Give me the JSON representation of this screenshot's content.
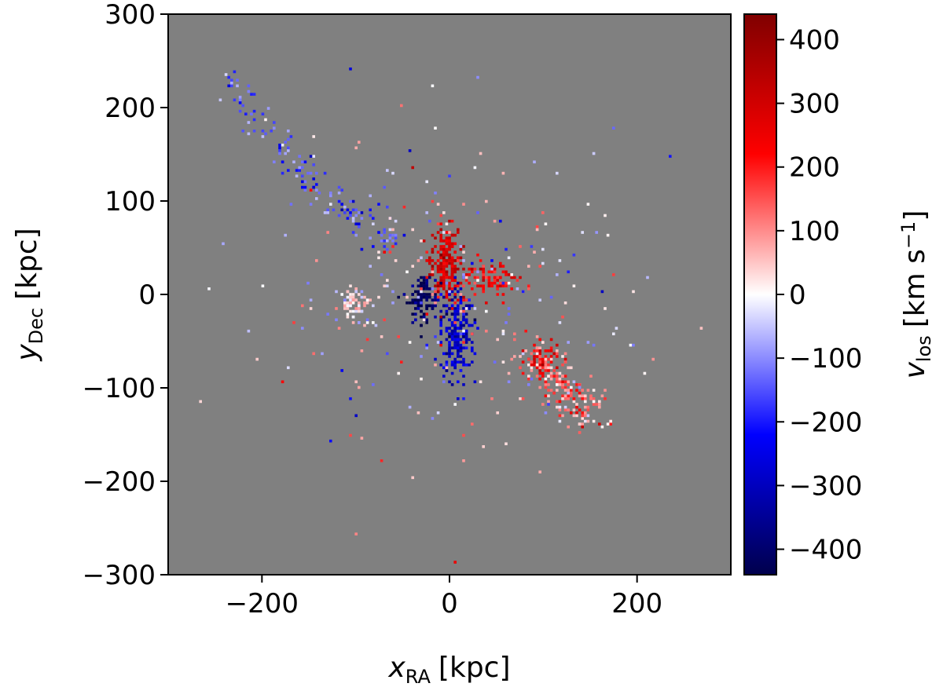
{
  "chart_data": {
    "type": "heatmap",
    "title": "",
    "background_color": "#808080",
    "colormap": "seismic",
    "x_axis": {
      "symbol": "x",
      "subscript": "RA",
      "unit": "[kpc]",
      "range": [
        -300,
        300
      ],
      "ticks": [
        -200,
        0,
        200
      ],
      "tick_labels": [
        "−200",
        "0",
        "200"
      ]
    },
    "y_axis": {
      "symbol": "y",
      "subscript": "Dec",
      "unit": "[kpc]",
      "range": [
        -300,
        300
      ],
      "ticks": [
        -300,
        -200,
        -100,
        0,
        100,
        200,
        300
      ],
      "tick_labels": [
        "−300",
        "−200",
        "−100",
        "0",
        "100",
        "200",
        "300"
      ]
    },
    "colorbar": {
      "symbol": "v",
      "subscript": "los",
      "unit_main": "[km s",
      "unit_exp": "−1",
      "unit_close": "]",
      "range": [
        -440,
        440
      ],
      "ticks": [
        -400,
        -300,
        -200,
        -100,
        0,
        100,
        200,
        300,
        400
      ],
      "tick_labels": [
        "−400",
        "−300",
        "−200",
        "−100",
        "0",
        "100",
        "200",
        "300",
        "400"
      ]
    },
    "features": [
      {
        "kind": "stream",
        "x": [
          -235,
          -205,
          -175,
          -145,
          -115,
          -85,
          -55
        ],
        "y": [
          230,
          185,
          150,
          115,
          95,
          75,
          50
        ],
        "v": -140,
        "spread": 9,
        "count": 150
      },
      {
        "kind": "core_red",
        "x": [
          -5
        ],
        "y": [
          35
        ],
        "v": 290,
        "sx": 8,
        "sy": 22,
        "count": 220
      },
      {
        "kind": "core_blue",
        "x": [
          8
        ],
        "y": [
          -40
        ],
        "v": -300,
        "sx": 9,
        "sy": 25,
        "count": 230
      },
      {
        "kind": "clump_darkblue",
        "x": [
          -27
        ],
        "y": [
          -5
        ],
        "v": -420,
        "sx": 7,
        "sy": 13,
        "count": 110
      },
      {
        "kind": "clump_red",
        "x": [
          40
        ],
        "y": [
          15
        ],
        "v": 230,
        "sx": 16,
        "sy": 10,
        "count": 90
      },
      {
        "kind": "clump_red",
        "x": [
          100
        ],
        "y": [
          -73
        ],
        "v": 240,
        "sx": 9,
        "sy": 8,
        "count": 70
      },
      {
        "kind": "stream",
        "x": [
          80,
          110,
          130,
          150
        ],
        "y": [
          -60,
          -90,
          -110,
          -130
        ],
        "v": 110,
        "spread": 13,
        "count": 200
      },
      {
        "kind": "clump_white",
        "x": [
          -100
        ],
        "y": [
          -10
        ],
        "v": 20,
        "sx": 9,
        "sy": 12,
        "count": 60
      },
      {
        "kind": "scatter",
        "x": [
          0
        ],
        "y": [
          0
        ],
        "v": 0,
        "sx": 95,
        "sy": 85,
        "count": 260
      }
    ]
  }
}
